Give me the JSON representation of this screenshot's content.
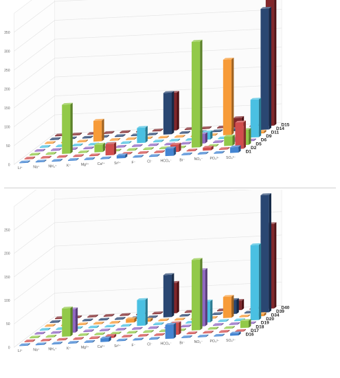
{
  "chart_data": [
    {
      "type": "bar",
      "title": "",
      "xlabel": "",
      "ylabel": "",
      "categories": [
        "Li⁺",
        "Na⁺",
        "NH₄⁺",
        "K⁺",
        "Mg²⁺",
        "Ca²⁺",
        "Sr²⁺",
        "F⁻",
        "Cl⁻",
        "HCO₃⁻",
        "Br⁻",
        "NO₃⁻",
        "PO₄³⁻",
        "SO₄²⁻"
      ],
      "yticks": [
        "0",
        "50",
        "100",
        "150",
        "200",
        "250",
        "300",
        "350"
      ],
      "ylim": [
        0,
        400
      ],
      "grid": true,
      "series": [
        {
          "name": "D1",
          "color": "#3a7fd0",
          "values": [
            0,
            0,
            0,
            0,
            0,
            0,
            8,
            0,
            0,
            20,
            0,
            0,
            0,
            15
          ]
        },
        {
          "name": "D2",
          "color": "#cf4444",
          "values": [
            0,
            0,
            0,
            0,
            0,
            30,
            0,
            0,
            0,
            20,
            0,
            8,
            0,
            70
          ]
        },
        {
          "name": "D5",
          "color": "#8cc63f",
          "values": [
            0,
            0,
            130,
            0,
            20,
            0,
            0,
            0,
            0,
            0,
            280,
            0,
            25,
            40
          ]
        },
        {
          "name": "D6",
          "color": "#8a5fbf",
          "values": [
            0,
            0,
            0,
            0,
            0,
            0,
            0,
            0,
            0,
            0,
            25,
            0,
            10,
            0
          ]
        },
        {
          "name": "D9",
          "color": "#40bde0",
          "values": [
            0,
            0,
            0,
            0,
            0,
            0,
            40,
            0,
            0,
            0,
            20,
            0,
            0,
            100
          ]
        },
        {
          "name": "D11",
          "color": "#f7962e",
          "values": [
            0,
            0,
            0,
            55,
            0,
            0,
            0,
            0,
            0,
            0,
            0,
            200,
            0,
            5
          ]
        },
        {
          "name": "D14",
          "color": "#1f3d6b",
          "values": [
            0,
            0,
            0,
            0,
            0,
            0,
            0,
            110,
            0,
            0,
            0,
            5,
            0,
            320
          ]
        },
        {
          "name": "D15",
          "color": "#7a1c20",
          "values": [
            0,
            0,
            0,
            0,
            0,
            0,
            0,
            100,
            0,
            0,
            0,
            25,
            0,
            340
          ]
        }
      ]
    },
    {
      "type": "bar",
      "title": "",
      "xlabel": "",
      "ylabel": "",
      "categories": [
        "Li⁺",
        "Na⁺",
        "NH₄⁺",
        "K⁺",
        "Mg²⁺",
        "Ca²⁺",
        "Sr²⁺",
        "F⁻",
        "Cl⁻",
        "HCO₃⁻",
        "Br⁻",
        "NO₃⁻",
        "PO₄³⁻",
        "SO₄²⁻"
      ],
      "yticks": [
        "0",
        "50",
        "100",
        "150",
        "200",
        "250"
      ],
      "ylim": [
        0,
        300
      ],
      "grid": true,
      "series": [
        {
          "name": "D16",
          "color": "#3a7fd0",
          "values": [
            0,
            0,
            0,
            0,
            0,
            8,
            0,
            0,
            0,
            30,
            0,
            0,
            0,
            5
          ]
        },
        {
          "name": "D17",
          "color": "#cf4444",
          "values": [
            0,
            0,
            0,
            0,
            0,
            5,
            0,
            0,
            0,
            25,
            0,
            0,
            0,
            0
          ]
        },
        {
          "name": "D18",
          "color": "#8cc63f",
          "values": [
            0,
            0,
            60,
            0,
            0,
            0,
            0,
            0,
            0,
            0,
            150,
            0,
            0,
            15
          ]
        },
        {
          "name": "D19",
          "color": "#8a5fbf",
          "values": [
            0,
            0,
            50,
            0,
            0,
            0,
            0,
            0,
            0,
            0,
            120,
            0,
            0,
            0
          ]
        },
        {
          "name": "D20",
          "color": "#40bde0",
          "values": [
            0,
            0,
            0,
            0,
            0,
            0,
            55,
            0,
            0,
            0,
            45,
            0,
            0,
            160
          ]
        },
        {
          "name": "D34",
          "color": "#f7962e",
          "values": [
            0,
            0,
            0,
            0,
            0,
            8,
            5,
            0,
            0,
            0,
            0,
            45,
            0,
            5
          ]
        },
        {
          "name": "D39",
          "color": "#1f3d6b",
          "values": [
            0,
            0,
            0,
            0,
            0,
            0,
            0,
            90,
            0,
            0,
            0,
            30,
            0,
            250
          ]
        },
        {
          "name": "D40",
          "color": "#7a1c20",
          "values": [
            0,
            0,
            0,
            0,
            0,
            0,
            0,
            65,
            0,
            0,
            0,
            20,
            0,
            180
          ]
        }
      ]
    }
  ]
}
